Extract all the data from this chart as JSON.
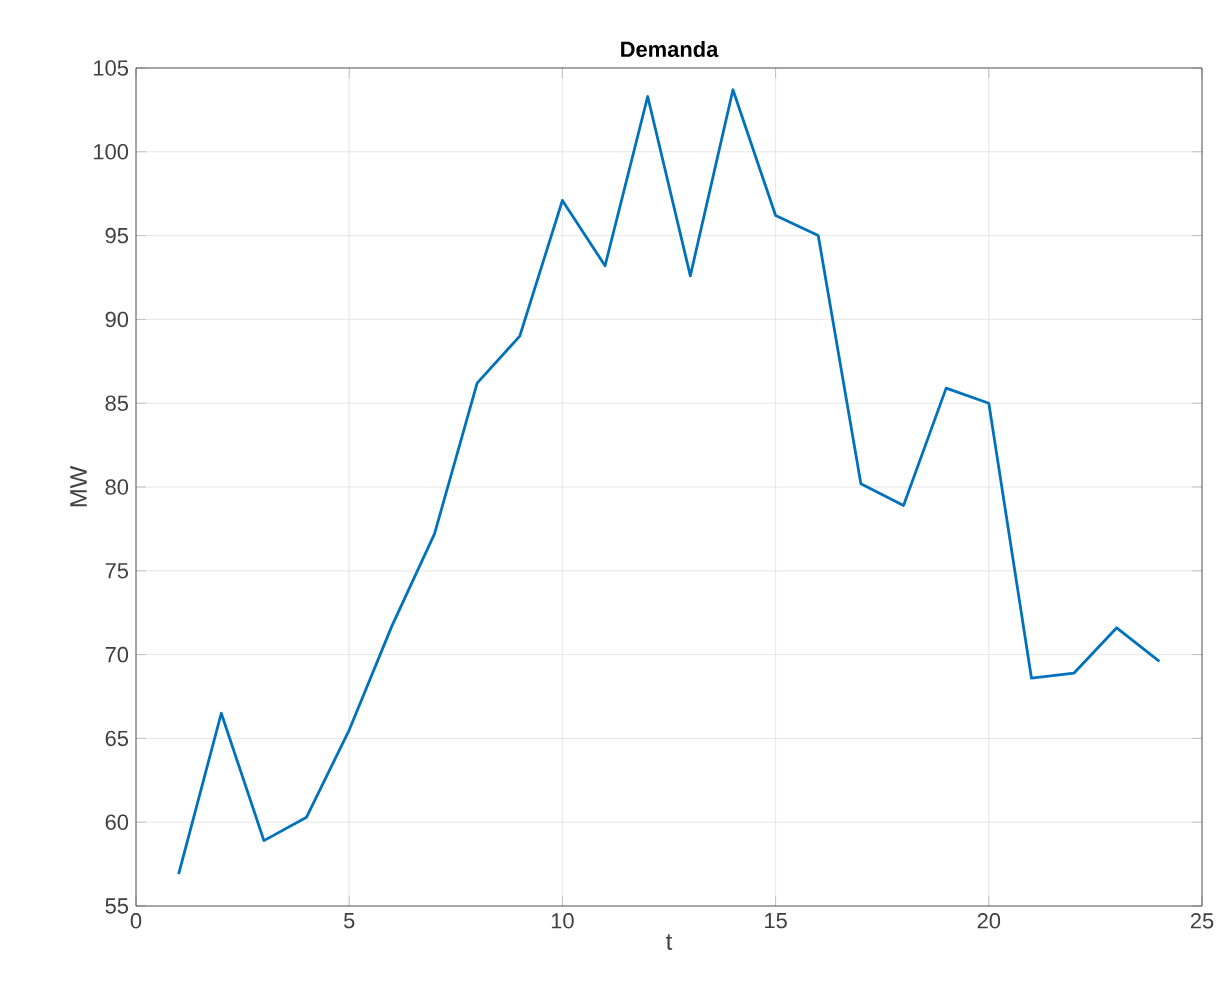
{
  "chart_data": {
    "type": "line",
    "title": "Demanda",
    "xlabel": "t",
    "ylabel": "MW",
    "x": [
      1,
      2,
      3,
      4,
      5,
      6,
      7,
      8,
      9,
      10,
      11,
      12,
      13,
      14,
      15,
      16,
      17,
      18,
      19,
      20,
      21,
      22,
      23,
      24
    ],
    "series": [
      {
        "color": "#0072bd",
        "values": [
          56.9,
          66.5,
          58.9,
          60.3,
          65.5,
          71.7,
          77.2,
          86.2,
          89.0,
          97.1,
          93.2,
          103.3,
          92.6,
          103.7,
          96.2,
          95.0,
          80.2,
          78.9,
          85.9,
          85.0,
          68.6,
          68.9,
          71.6,
          69.6
        ]
      }
    ],
    "xlim": [
      0,
      25
    ],
    "ylim": [
      55,
      105
    ],
    "xticks": [
      0,
      5,
      10,
      15,
      20,
      25
    ],
    "yticks": [
      55,
      60,
      65,
      70,
      75,
      80,
      85,
      90,
      95,
      100,
      105
    ],
    "grid": true,
    "marker": "none",
    "line_style": "solid"
  }
}
